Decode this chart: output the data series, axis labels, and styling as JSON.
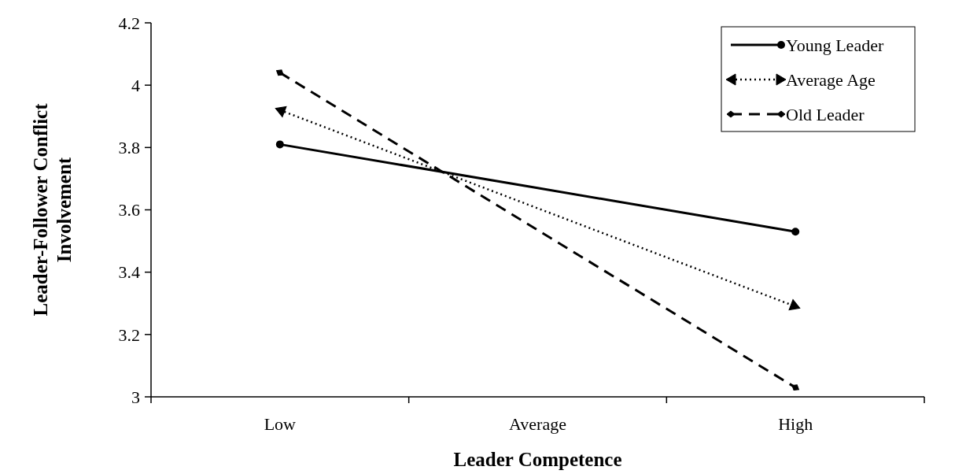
{
  "chart_data": {
    "type": "line",
    "xlabel": "Leader Competence",
    "ylabel": "Leader-Follower Conflict Involvement",
    "categories": [
      "Low",
      "Average",
      "High"
    ],
    "ylim": [
      3,
      4.2
    ],
    "yticks": [
      3,
      3.2,
      3.4,
      3.6,
      3.8,
      4,
      4.2
    ],
    "grid": false,
    "legend": "top right",
    "series": [
      {
        "name": "Young Leader",
        "color": "#000000",
        "values": [
          3.81,
          3.67,
          3.53
        ],
        "line_style": "solid",
        "marker": "circle"
      },
      {
        "name": "Average Age",
        "color": "#000000",
        "values": [
          3.92,
          3.605,
          3.29
        ],
        "line_style": "dotted",
        "marker": "triangle"
      },
      {
        "name": "Old Leader",
        "color": "#000000",
        "values": [
          4.04,
          3.535,
          3.03
        ],
        "line_style": "dashed",
        "marker": "diamond"
      }
    ]
  }
}
